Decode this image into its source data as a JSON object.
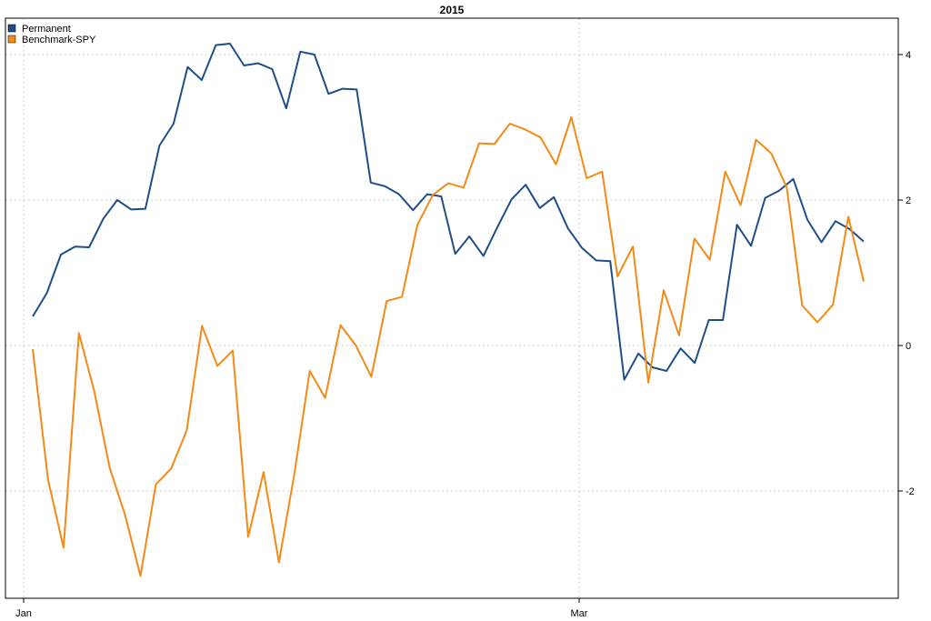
{
  "chart_data": {
    "type": "line",
    "title": "2015",
    "xlabel": "",
    "ylabel": "",
    "ylim": [
      -3.45,
      4.48
    ],
    "x_ticks": [
      "Jan",
      "Mar"
    ],
    "y_ticks": [
      -2,
      0,
      2,
      4
    ],
    "grid": true,
    "legend_position": "top-left",
    "series": [
      {
        "name": "Permanent",
        "color": "#1f4e86",
        "values": [
          0.4,
          0.72,
          1.25,
          1.36,
          1.35,
          1.74,
          2.0,
          1.87,
          1.88,
          2.75,
          3.05,
          3.83,
          3.65,
          4.13,
          4.15,
          3.85,
          3.88,
          3.8,
          3.26,
          4.04,
          4.0,
          3.46,
          3.53,
          3.52,
          2.24,
          2.19,
          2.08,
          1.86,
          2.08,
          2.05,
          1.26,
          1.5,
          1.23,
          1.63,
          2.01,
          2.21,
          1.89,
          2.04,
          1.61,
          1.34,
          1.17,
          1.16,
          -0.47,
          -0.11,
          -0.3,
          -0.35,
          -0.04,
          -0.24,
          0.35,
          0.35,
          1.66,
          1.37,
          2.03,
          2.13,
          2.29,
          1.73,
          1.42,
          1.71,
          1.6,
          1.43
        ]
      },
      {
        "name": "Benchmark-SPY",
        "color": "#f28a17",
        "values": [
          -0.05,
          -1.85,
          -2.78,
          0.17,
          -0.63,
          -1.68,
          -2.33,
          -3.17,
          -1.91,
          -1.69,
          -1.17,
          0.27,
          -0.28,
          -0.07,
          -2.63,
          -1.74,
          -2.98,
          -1.77,
          -0.35,
          -0.72,
          0.28,
          0.0,
          -0.43,
          0.61,
          0.67,
          1.66,
          2.07,
          2.23,
          2.17,
          2.78,
          2.77,
          3.05,
          2.97,
          2.86,
          2.49,
          3.14,
          2.3,
          2.39,
          0.95,
          1.36,
          -0.51,
          0.76,
          0.14,
          1.47,
          1.18,
          2.39,
          1.93,
          2.83,
          2.64,
          2.17,
          0.55,
          0.32,
          0.56,
          1.77,
          0.88
        ]
      }
    ]
  }
}
